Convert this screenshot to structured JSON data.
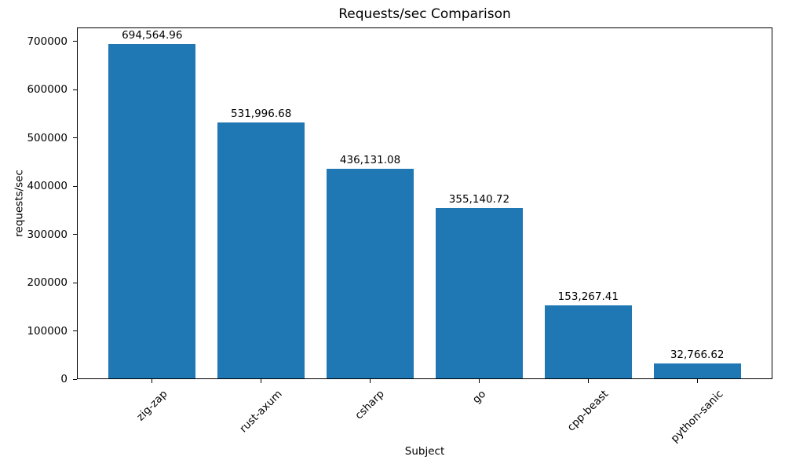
{
  "chart_data": {
    "type": "bar",
    "title": "Requests/sec Comparison",
    "xlabel": "Subject",
    "ylabel": "requests/sec",
    "categories": [
      "zig-zap",
      "rust-axum",
      "csharp",
      "go",
      "cpp-beast",
      "python-sanic"
    ],
    "values": [
      694564.96,
      531996.68,
      436131.08,
      355140.72,
      153267.41,
      32766.62
    ],
    "bar_labels": [
      "694,564.96",
      "531,996.68",
      "436,131.08",
      "355,140.72",
      "153,267.41",
      "32,766.62"
    ],
    "bar_color": "#1f77b4",
    "text_color": "#000000",
    "background_color": "#ffffff",
    "ylim": [
      0,
      729293
    ],
    "yticks": [
      0,
      100000,
      200000,
      300000,
      400000,
      500000,
      600000,
      700000
    ],
    "ytick_labels": [
      "0",
      "100000",
      "200000",
      "300000",
      "400000",
      "500000",
      "600000",
      "700000"
    ],
    "x_tick_rotation_deg": 45,
    "bar_width_fraction": 0.8,
    "grid": false,
    "legend": "none"
  }
}
